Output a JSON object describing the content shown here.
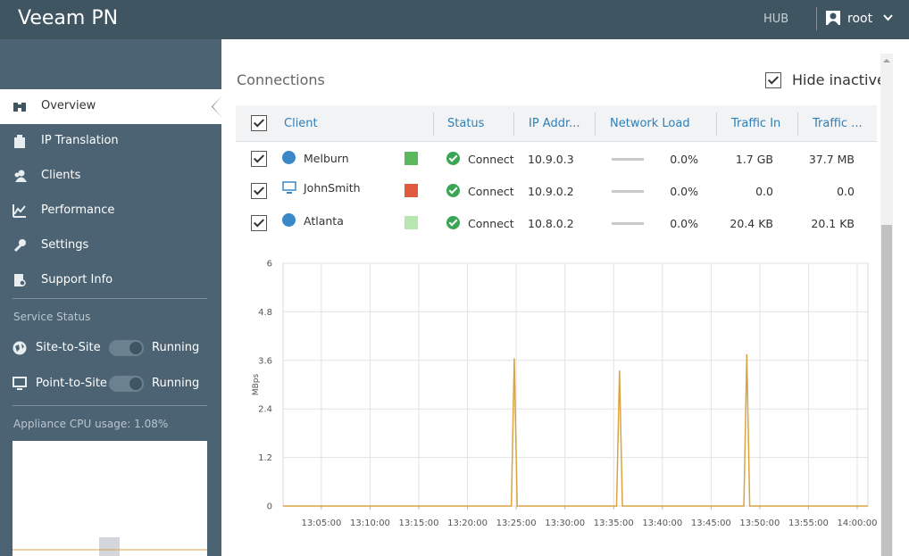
{
  "header": {
    "title": "Veeam PN",
    "mode": "HUB",
    "user": "root"
  },
  "sidebar": {
    "nav": [
      "Overview",
      "IP Translation",
      "Clients",
      "Performance",
      "Settings",
      "Support Info"
    ],
    "service_status_title": "Service Status",
    "services": [
      {
        "name": "Site-to-Site",
        "status": "Running"
      },
      {
        "name": "Point-to-Site",
        "status": "Running"
      }
    ],
    "cpu_label": "Appliance CPU usage: 1.08%"
  },
  "connections": {
    "title": "Connections",
    "hide_inactive": "Hide inactive",
    "columns": [
      "Client",
      "Status",
      "IP Addr...",
      "Network Load",
      "Traffic In",
      "Traffic ..."
    ],
    "rows": [
      [
        "Melburn",
        "Connect",
        "10.9.0.3",
        "0.0%",
        "1.7 GB",
        "37.7 MB"
      ],
      [
        "JohnSmith",
        "Connect",
        "10.9.0.2",
        "0.0%",
        "0.0",
        "0.0"
      ],
      [
        "Atlanta",
        "Connect",
        "10.8.0.2",
        "0.0%",
        "20.4 KB",
        "20.1 KB"
      ]
    ]
  },
  "chart_data": {
    "type": "line",
    "y_label": "MBps",
    "x": [
      "13:01:04",
      "13:24:30",
      "13:24:48",
      "13:25:06",
      "13:35:18",
      "13:35:36",
      "13:35:54",
      "13:48:22",
      "13:48:40",
      "13:48:58",
      "14:01:06"
    ],
    "series": [
      {
        "color": "#d9a441",
        "values": [
          0,
          0,
          3.65,
          0,
          0,
          3.35,
          0,
          0,
          3.75,
          0,
          0
        ]
      }
    ],
    "xlim": [
      "13:01:04",
      "14:01:06"
    ],
    "xticks": [
      "13:05:00",
      "13:10:00",
      "13:15:00",
      "13:20:00",
      "13:25:00",
      "13:30:00",
      "13:35:00",
      "13:40:00",
      "13:45:00",
      "13:50:00",
      "13:55:00",
      "14:00:00"
    ],
    "ylim": [
      0,
      6
    ],
    "yticks": [
      0,
      1.2,
      2.4,
      3.6,
      4.8,
      6
    ],
    "grid": true
  }
}
